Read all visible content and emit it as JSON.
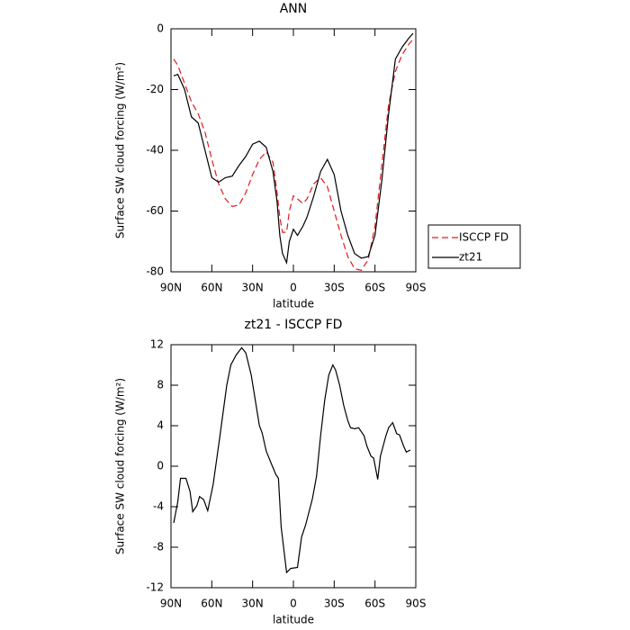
{
  "chart_data": [
    {
      "type": "line",
      "title": "ANN",
      "xlabel": "latitude",
      "ylabel": "Surface SW cloud forcing (W/m²)",
      "x": [
        88,
        85,
        80,
        75,
        70,
        65,
        60,
        55,
        50,
        45,
        40,
        35,
        30,
        25,
        20,
        15,
        12,
        10,
        8,
        5,
        3,
        0,
        -3,
        -7,
        -10,
        -15,
        -20,
        -25,
        -30,
        -35,
        -40,
        -45,
        -50,
        -55,
        -60,
        -65,
        -70,
        -75,
        -80,
        -85,
        -88
      ],
      "series": [
        {
          "name": "ISCCP FD",
          "color": "#e31a1c",
          "linestyle": "dashed",
          "values": [
            -10,
            -12,
            -18,
            -24,
            -28,
            -34,
            -43,
            -51,
            -56,
            -58.5,
            -58,
            -54,
            -48,
            -43,
            -40.5,
            -44,
            -54,
            -62,
            -67,
            -67,
            -60,
            -55,
            -56,
            -57.5,
            -56,
            -51,
            -49,
            -52,
            -60,
            -68,
            -75,
            -79,
            -79.5,
            -76,
            -65,
            -45,
            -25,
            -14,
            -8.5,
            -5,
            -3.5
          ]
        },
        {
          "name": "zt21",
          "color": "#000000",
          "linestyle": "solid",
          "values": [
            -15.5,
            -15,
            -20,
            -29,
            -31,
            -40,
            -49,
            -50.5,
            -49,
            -48.5,
            -45,
            -42,
            -38,
            -37,
            -39,
            -47,
            -57,
            -68,
            -74,
            -77,
            -70,
            -66,
            -68,
            -65,
            -62,
            -55,
            -47,
            -43,
            -48,
            -60,
            -68,
            -74,
            -75.5,
            -75,
            -68,
            -50,
            -28,
            -10,
            -6,
            -3,
            -1.5
          ]
        }
      ],
      "xlim": [
        90,
        -90
      ],
      "xticks": [
        {
          "value": 90,
          "label": "90N"
        },
        {
          "value": 60,
          "label": "60N"
        },
        {
          "value": 30,
          "label": "30N"
        },
        0,
        {
          "value": -30,
          "label": "30S"
        },
        {
          "value": -60,
          "label": "60S"
        },
        {
          "value": -90,
          "label": "90S"
        }
      ],
      "ylim": [
        -80,
        0
      ],
      "yticks": [
        0,
        -20,
        -40,
        -60,
        -80
      ],
      "legend": "outside-right"
    },
    {
      "type": "line",
      "title": "zt21 - ISCCP FD",
      "xlabel": "latitude",
      "ylabel": "Surface SW cloud forcing (W/m²)",
      "x": [
        88,
        85,
        83,
        79,
        76,
        74,
        71,
        69,
        66,
        63,
        59,
        54,
        49,
        46,
        42,
        38,
        35,
        31,
        28,
        25,
        23,
        20,
        17,
        13,
        11,
        9,
        5,
        2,
        -3,
        -6,
        -9,
        -14,
        -17,
        -20,
        -23,
        -26,
        -29,
        -31,
        -34,
        -37,
        -40,
        -42,
        -45,
        -48,
        -52,
        -54,
        -57,
        -59,
        -62,
        -64,
        -68,
        -70,
        -73,
        -76,
        -78,
        -81,
        -83,
        -86
      ],
      "series": [
        {
          "color": "#000000",
          "linestyle": "solid",
          "values": [
            -5.6,
            -3.5,
            -1.2,
            -1.2,
            -2.5,
            -4.5,
            -3.9,
            -3,
            -3.3,
            -4.4,
            -1.8,
            3,
            8,
            10,
            11,
            11.7,
            11.2,
            9,
            6.5,
            4,
            3.3,
            1.5,
            0.5,
            -0.8,
            -1.2,
            -6,
            -10.5,
            -10.1,
            -10,
            -7,
            -5.8,
            -3.2,
            -1,
            3,
            6.5,
            9,
            10,
            9.5,
            8,
            6,
            4.5,
            3.8,
            3.7,
            3.8,
            3,
            2,
            1,
            0.8,
            -1.3,
            1,
            3,
            3.8,
            4.3,
            3.2,
            3.1,
            2,
            1.4,
            1.6
          ]
        }
      ],
      "xlim": [
        90,
        -90
      ],
      "xticks": [
        {
          "value": 90,
          "label": "90N"
        },
        {
          "value": 60,
          "label": "60N"
        },
        {
          "value": 30,
          "label": "30N"
        },
        0,
        {
          "value": -30,
          "label": "30S"
        },
        {
          "value": -60,
          "label": "60S"
        },
        {
          "value": -90,
          "label": "90S"
        }
      ],
      "ylim": [
        -12,
        12
      ],
      "yticks": [
        12,
        8,
        4,
        0,
        -4,
        -8,
        -12
      ]
    }
  ]
}
